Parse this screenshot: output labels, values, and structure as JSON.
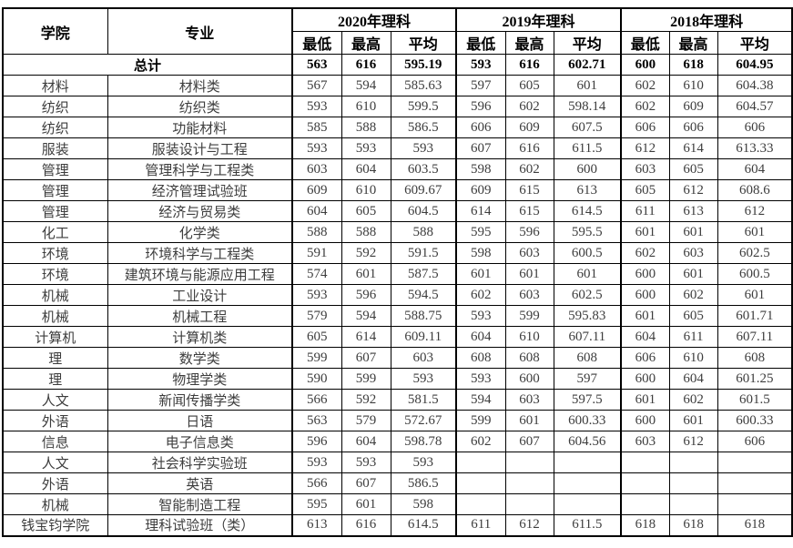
{
  "page": {
    "background": "#ffffff"
  },
  "table": {
    "border_color": "#000000",
    "header_text_color": "#000000",
    "body_text_color": "#3d3d3d",
    "headers": {
      "college": "学院",
      "major": "专业",
      "year_groups": [
        "2020年理科",
        "2019年理科",
        "2018年理科"
      ],
      "sub": [
        "最低",
        "最高",
        "平均"
      ]
    },
    "total_row": {
      "label": "总计",
      "values": [
        "563",
        "616",
        "595.19",
        "593",
        "616",
        "602.71",
        "600",
        "618",
        "604.95"
      ]
    },
    "rows": [
      {
        "college": "材料",
        "major": "材料类",
        "values": [
          "567",
          "594",
          "585.63",
          "597",
          "605",
          "601",
          "602",
          "610",
          "604.38"
        ]
      },
      {
        "college": "纺织",
        "major": "纺织类",
        "values": [
          "593",
          "610",
          "599.5",
          "596",
          "602",
          "598.14",
          "602",
          "609",
          "604.57"
        ]
      },
      {
        "college": "纺织",
        "major": "功能材料",
        "values": [
          "585",
          "588",
          "586.5",
          "606",
          "609",
          "607.5",
          "606",
          "606",
          "606"
        ]
      },
      {
        "college": "服装",
        "major": "服装设计与工程",
        "values": [
          "593",
          "593",
          "593",
          "607",
          "616",
          "611.5",
          "612",
          "614",
          "613.33"
        ]
      },
      {
        "college": "管理",
        "major": "管理科学与工程类",
        "values": [
          "603",
          "604",
          "603.5",
          "598",
          "602",
          "600",
          "603",
          "605",
          "604"
        ]
      },
      {
        "college": "管理",
        "major": "经济管理试验班",
        "values": [
          "609",
          "610",
          "609.67",
          "609",
          "615",
          "613",
          "605",
          "612",
          "608.6"
        ]
      },
      {
        "college": "管理",
        "major": "经济与贸易类",
        "values": [
          "604",
          "605",
          "604.5",
          "614",
          "615",
          "614.5",
          "611",
          "613",
          "612"
        ]
      },
      {
        "college": "化工",
        "major": "化学类",
        "values": [
          "588",
          "588",
          "588",
          "595",
          "596",
          "595.5",
          "601",
          "601",
          "601"
        ]
      },
      {
        "college": "环境",
        "major": "环境科学与工程类",
        "values": [
          "591",
          "592",
          "591.5",
          "598",
          "603",
          "600.5",
          "602",
          "603",
          "602.5"
        ]
      },
      {
        "college": "环境",
        "major": "建筑环境与能源应用工程",
        "values": [
          "574",
          "601",
          "587.5",
          "601",
          "601",
          "601",
          "600",
          "601",
          "600.5"
        ]
      },
      {
        "college": "机械",
        "major": "工业设计",
        "values": [
          "593",
          "596",
          "594.5",
          "602",
          "603",
          "602.5",
          "600",
          "602",
          "601"
        ]
      },
      {
        "college": "机械",
        "major": "机械工程",
        "values": [
          "579",
          "594",
          "588.75",
          "593",
          "599",
          "595.83",
          "601",
          "605",
          "601.71"
        ]
      },
      {
        "college": "计算机",
        "major": "计算机类",
        "values": [
          "605",
          "614",
          "609.11",
          "604",
          "610",
          "607.11",
          "604",
          "611",
          "607.11"
        ]
      },
      {
        "college": "理",
        "major": "数学类",
        "values": [
          "599",
          "607",
          "603",
          "608",
          "608",
          "608",
          "606",
          "610",
          "608"
        ]
      },
      {
        "college": "理",
        "major": "物理学类",
        "values": [
          "590",
          "599",
          "593",
          "593",
          "600",
          "597",
          "600",
          "604",
          "601.25"
        ]
      },
      {
        "college": "人文",
        "major": "新闻传播学类",
        "values": [
          "566",
          "592",
          "581.5",
          "594",
          "603",
          "597.5",
          "601",
          "602",
          "601.5"
        ]
      },
      {
        "college": "外语",
        "major": "日语",
        "values": [
          "563",
          "579",
          "572.67",
          "599",
          "601",
          "600.33",
          "600",
          "601",
          "600.33"
        ]
      },
      {
        "college": "信息",
        "major": "电子信息类",
        "values": [
          "596",
          "604",
          "598.78",
          "602",
          "607",
          "604.56",
          "603",
          "612",
          "606"
        ]
      },
      {
        "college": "人文",
        "major": "社会科学实验班",
        "values": [
          "593",
          "593",
          "593",
          "",
          "",
          "",
          "",
          "",
          ""
        ]
      },
      {
        "college": "外语",
        "major": "英语",
        "values": [
          "566",
          "607",
          "586.5",
          "",
          "",
          "",
          "",
          "",
          ""
        ]
      },
      {
        "college": "机械",
        "major": "智能制造工程",
        "values": [
          "595",
          "601",
          "598",
          "",
          "",
          "",
          "",
          "",
          ""
        ]
      },
      {
        "college": "钱宝钧学院",
        "major": "理科试验班（类）",
        "values": [
          "613",
          "616",
          "614.5",
          "611",
          "612",
          "611.5",
          "618",
          "618",
          "618"
        ]
      }
    ]
  }
}
